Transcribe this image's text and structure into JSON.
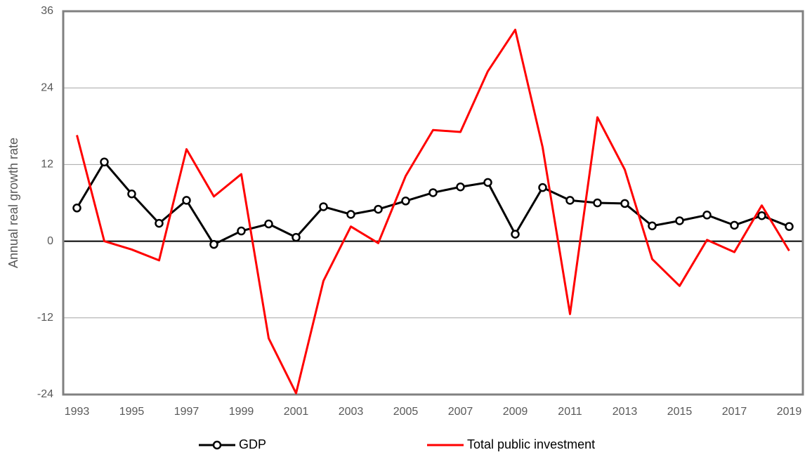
{
  "chart_data": {
    "type": "line",
    "y_label": "Annual real growth rate",
    "x": [
      1993,
      1994,
      1995,
      1996,
      1997,
      1998,
      1999,
      2000,
      2001,
      2002,
      2003,
      2004,
      2005,
      2006,
      2007,
      2008,
      2009,
      2010,
      2011,
      2012,
      2013,
      2014,
      2015,
      2016,
      2017,
      2018,
      2019
    ],
    "xlim": [
      1992.5,
      2019.5
    ],
    "xticks": [
      1993,
      1995,
      1997,
      1999,
      2001,
      2003,
      2005,
      2007,
      2009,
      2011,
      2013,
      2015,
      2017,
      2019
    ],
    "ylim": [
      -24,
      36
    ],
    "yticks": [
      -24,
      -12,
      0,
      12,
      24,
      36
    ],
    "grid": true,
    "legend": "bottom",
    "series": [
      {
        "name": "GDP",
        "color": "#000000",
        "marker": "circle",
        "values": [
          5.2,
          12.4,
          7.4,
          2.8,
          6.4,
          -0.5,
          1.6,
          2.7,
          0.6,
          5.4,
          4.2,
          5.0,
          6.3,
          7.6,
          8.5,
          9.2,
          1.1,
          8.4,
          6.4,
          6.0,
          5.9,
          2.4,
          3.2,
          4.1,
          2.5,
          4.0,
          2.3
        ]
      },
      {
        "name": "Total public investment",
        "color": "#ff0000",
        "values": [
          16.6,
          0,
          -1.3,
          -3.0,
          14.4,
          7.0,
          10.5,
          -15.2,
          -23.8,
          -6.2,
          2.3,
          -0.3,
          10.2,
          17.4,
          17.1,
          26.6,
          33.1,
          14.7,
          -11.4,
          19.4,
          11.2,
          -2.8,
          -7.0,
          0.2,
          -1.7,
          5.6,
          -1.5
        ]
      }
    ]
  }
}
